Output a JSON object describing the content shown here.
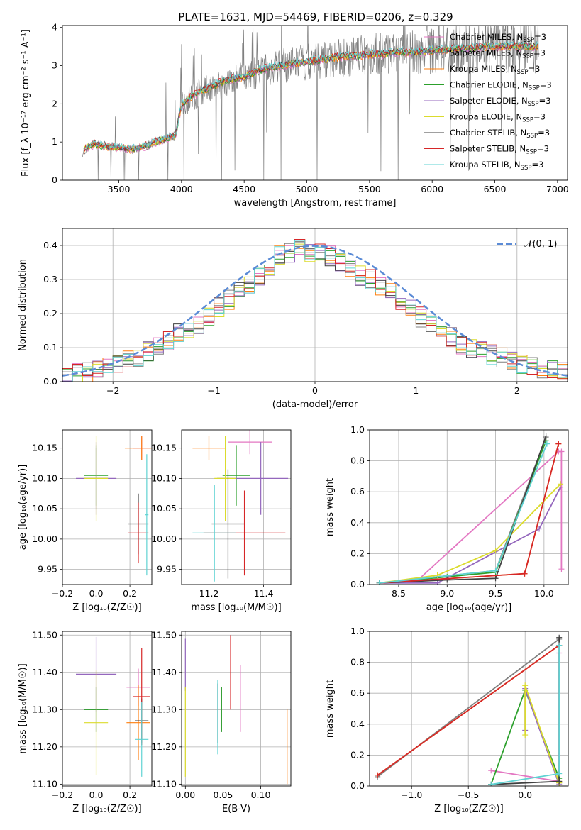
{
  "figure_title": "PLATE=1631, MJD=54469, FIBERID=0206, z=0.329",
  "series": [
    {
      "name": "Chabrier MILES, N",
      "sub": "SSP",
      "suffix": "=3",
      "color": "#e377c2"
    },
    {
      "name": "Salpeter MILES, N",
      "sub": "SSP",
      "suffix": "=3",
      "color": "#7f7f7f"
    },
    {
      "name": "Kroupa MILES, N",
      "sub": "SSP",
      "suffix": "=3",
      "color": "#ff7f0e"
    },
    {
      "name": "Chabrier ELODIE, N",
      "sub": "SSP",
      "suffix": "=3",
      "color": "#2ca02c"
    },
    {
      "name": "Salpeter ELODIE, N",
      "sub": "SSP",
      "suffix": "=3",
      "color": "#9467bd"
    },
    {
      "name": "Kroupa ELODIE, N",
      "sub": "SSP",
      "suffix": "=3",
      "color": "#dbdb2d"
    },
    {
      "name": "Chabrier STELIB, N",
      "sub": "SSP",
      "suffix": "=3",
      "color": "#404040"
    },
    {
      "name": "Salpeter STELIB, N",
      "sub": "SSP",
      "suffix": "=3",
      "color": "#d62728"
    },
    {
      "name": "Kroupa STELIB, N",
      "sub": "SSP",
      "suffix": "=3",
      "color": "#5fd3d3"
    }
  ],
  "chart_data": [
    {
      "id": "spectrum",
      "type": "line",
      "xlabel": "wavelength [Angstrom, rest frame]",
      "ylabel": "Flux [f_λ 10⁻¹⁷ erg cm⁻² s⁻¹ A⁻¹]",
      "xlim": [
        3050,
        7080
      ],
      "ylim": [
        0,
        4.05
      ],
      "xticks": [
        3500,
        4000,
        4500,
        5000,
        5500,
        6000,
        6500,
        7000
      ],
      "yticks": [
        0,
        1,
        2,
        3,
        4
      ],
      "grid": false,
      "legend": "top-right",
      "observed_color": "#808080",
      "observed": {
        "x": [
          3200,
          3250,
          3300,
          3400,
          3500,
          3600,
          3700,
          3800,
          3880,
          3950,
          4000,
          4100,
          4200,
          4300,
          4400,
          4500,
          4600,
          4700,
          4800,
          4900,
          5000,
          5100,
          5200,
          5300,
          5400,
          5500,
          5600,
          5700,
          5800,
          5900,
          6000,
          6100,
          6200,
          6300,
          6400,
          6500,
          6600,
          6700,
          6800,
          6850
        ],
        "y": [
          0.7,
          0.85,
          0.95,
          0.9,
          0.85,
          0.8,
          0.9,
          1.0,
          1.1,
          1.2,
          2.0,
          2.2,
          2.4,
          2.5,
          2.6,
          2.7,
          2.8,
          2.9,
          3.0,
          3.05,
          3.1,
          3.15,
          3.2,
          3.2,
          3.25,
          3.3,
          3.3,
          3.3,
          3.35,
          3.35,
          3.4,
          3.4,
          3.45,
          3.45,
          3.5,
          3.5,
          3.5,
          3.55,
          3.5,
          3.5
        ]
      },
      "model": {
        "x": [
          3200,
          3250,
          3300,
          3400,
          3500,
          3600,
          3700,
          3800,
          3880,
          3950,
          4000,
          4100,
          4200,
          4300,
          4400,
          4500,
          4600,
          4700,
          4800,
          4900,
          5000,
          5100,
          5200,
          5300,
          5400,
          5500,
          5600,
          5700,
          5800,
          5900,
          6000,
          6100,
          6200,
          6300,
          6400,
          6500,
          6600,
          6700,
          6800,
          6850
        ],
        "y": [
          0.75,
          0.85,
          0.95,
          0.88,
          0.85,
          0.8,
          0.88,
          1.0,
          1.1,
          1.15,
          1.95,
          2.25,
          2.4,
          2.55,
          2.65,
          2.7,
          2.85,
          2.95,
          3.0,
          3.05,
          3.1,
          3.15,
          3.2,
          3.25,
          3.25,
          3.3,
          3.3,
          3.35,
          3.35,
          3.35,
          3.4,
          3.4,
          3.45,
          3.45,
          3.5,
          3.5,
          3.5,
          3.5,
          3.5,
          3.5
        ]
      }
    },
    {
      "id": "residuals",
      "type": "line",
      "xlabel": "(data-model)/error",
      "ylabel": "Normed distribution",
      "xlim": [
        -2.5,
        2.5
      ],
      "ylim": [
        0,
        0.45
      ],
      "xticks": [
        -2,
        -1,
        0,
        1,
        2
      ],
      "yticks": [
        0.0,
        0.1,
        0.2,
        0.3,
        0.4
      ],
      "grid": true,
      "legend": "top-right",
      "gauss_label": "𝒩(0, 1)",
      "gauss_color": "#5b8bd6",
      "hist_x": [
        -2.5,
        -2.4,
        -2.3,
        -2.2,
        -2.1,
        -2.0,
        -1.9,
        -1.8,
        -1.7,
        -1.6,
        -1.5,
        -1.4,
        -1.3,
        -1.2,
        -1.1,
        -1.0,
        -0.9,
        -0.8,
        -0.7,
        -0.6,
        -0.5,
        -0.4,
        -0.3,
        -0.2,
        -0.1,
        0.0,
        0.1,
        0.2,
        0.3,
        0.4,
        0.5,
        0.6,
        0.7,
        0.8,
        0.9,
        1.0,
        1.1,
        1.2,
        1.3,
        1.4,
        1.5,
        1.6,
        1.7,
        1.8,
        1.9,
        2.0,
        2.1,
        2.2,
        2.3,
        2.4
      ],
      "hist_y": [
        0.02,
        0.025,
        0.03,
        0.035,
        0.045,
        0.05,
        0.06,
        0.07,
        0.09,
        0.1,
        0.12,
        0.14,
        0.15,
        0.17,
        0.19,
        0.22,
        0.24,
        0.27,
        0.29,
        0.31,
        0.34,
        0.37,
        0.38,
        0.39,
        0.38,
        0.38,
        0.37,
        0.35,
        0.33,
        0.31,
        0.3,
        0.28,
        0.26,
        0.24,
        0.21,
        0.19,
        0.17,
        0.15,
        0.13,
        0.11,
        0.1,
        0.09,
        0.08,
        0.07,
        0.06,
        0.05,
        0.045,
        0.04,
        0.035,
        0.03
      ]
    },
    {
      "id": "age_vs_Z",
      "type": "scatter",
      "xlabel": "Z [log₁₀(Z/Z☉)]",
      "ylabel": "age  [log₁₀(age/yr)]",
      "xlim": [
        -0.2,
        0.33
      ],
      "ylim": [
        9.925,
        10.18
      ],
      "xticks": [
        -0.2,
        0.0,
        0.2
      ],
      "xticklabels": [
        "−0.2",
        "0.0",
        "0.2"
      ],
      "yticks": [
        9.95,
        10.0,
        10.05,
        10.1,
        10.15
      ],
      "grid": true,
      "points": [
        {
          "s": 0,
          "x": 0.27,
          "y": 10.15,
          "xe": 0.05,
          "ye": 0.02
        },
        {
          "s": 1,
          "x": 0.0,
          "y": 10.1,
          "xe": 0.07,
          "ye": 0.05
        },
        {
          "s": 2,
          "x": 0.27,
          "y": 10.15,
          "xe": 0.1,
          "ye": 0.02
        },
        {
          "s": 3,
          "x": 0.0,
          "y": 10.105,
          "xe": 0.07,
          "ye": 0.05
        },
        {
          "s": 4,
          "x": 0.0,
          "y": 10.1,
          "xe": 0.12,
          "ye": 0.06
        },
        {
          "s": 5,
          "x": 0.0,
          "y": 10.1,
          "xe": 0.07,
          "ye": 0.07
        },
        {
          "s": 6,
          "x": 0.25,
          "y": 10.025,
          "xe": 0.06,
          "ye": 0.05
        },
        {
          "s": 7,
          "x": 0.25,
          "y": 10.01,
          "xe": 0.06,
          "ye": 0.05
        },
        {
          "s": 8,
          "x": 0.3,
          "y": 10.04,
          "xe": 0.01,
          "ye": 0.1
        }
      ]
    },
    {
      "id": "age_vs_mass",
      "type": "scatter",
      "xlabel": "mass [log₁₀(M/M☉)]",
      "ylabel": "",
      "xlim": [
        11.1,
        11.5
      ],
      "ylim": [
        9.925,
        10.18
      ],
      "xticks": [
        11.2,
        11.4
      ],
      "xticklabels": [
        "11.2",
        "11.4"
      ],
      "yticks": [
        9.95,
        10.0,
        10.05,
        10.1,
        10.15
      ],
      "grid": true,
      "points": [
        {
          "s": 0,
          "x": 11.35,
          "y": 10.16,
          "xe": 0.08,
          "ye": 0.02
        },
        {
          "s": 1,
          "x": 11.26,
          "y": 10.1,
          "xe": 0.03,
          "ye": 0.05
        },
        {
          "s": 2,
          "x": 11.2,
          "y": 10.15,
          "xe": 0.06,
          "ye": 0.02
        },
        {
          "s": 3,
          "x": 11.3,
          "y": 10.105,
          "xe": 0.05,
          "ye": 0.05
        },
        {
          "s": 4,
          "x": 11.39,
          "y": 10.1,
          "xe": 0.1,
          "ye": 0.06
        },
        {
          "s": 5,
          "x": 11.26,
          "y": 10.1,
          "xe": 0.04,
          "ye": 0.07
        },
        {
          "s": 6,
          "x": 11.27,
          "y": 10.025,
          "xe": 0.06,
          "ye": 0.09
        },
        {
          "s": 7,
          "x": 11.33,
          "y": 10.01,
          "xe": 0.15,
          "ye": 0.07
        },
        {
          "s": 8,
          "x": 11.22,
          "y": 10.01,
          "xe": 0.08,
          "ye": 0.08
        }
      ]
    },
    {
      "id": "massweight_vs_age",
      "type": "line",
      "xlabel": "age  [log₁₀(age/yr)]",
      "ylabel": "mass weight",
      "xlim": [
        8.2,
        10.25
      ],
      "ylim": [
        0,
        1.0
      ],
      "xticks": [
        8.5,
        9.0,
        9.5,
        10.0
      ],
      "xticklabels": [
        "8.5",
        "9.0",
        "9.5",
        "10.0"
      ],
      "yticks": [
        0.0,
        0.2,
        0.4,
        0.6,
        0.8,
        1.0
      ],
      "grid": true,
      "lines": [
        {
          "s": 0,
          "x": [
            8.7,
            10.15,
            10.18,
            10.18
          ],
          "y": [
            0.03,
            0.86,
            0.86,
            0.1
          ]
        },
        {
          "s": 1,
          "x": [
            8.3,
            9.5,
            10.02
          ],
          "y": [
            0.01,
            0.09,
            0.95
          ]
        },
        {
          "s": 2,
          "x": [
            8.3,
            9.8,
            10.15
          ],
          "y": [
            0.01,
            0.07,
            0.91
          ]
        },
        {
          "s": 3,
          "x": [
            8.3,
            9.0,
            9.5,
            10.02
          ],
          "y": [
            0.01,
            0.05,
            0.08,
            0.93
          ]
        },
        {
          "s": 4,
          "x": [
            8.3,
            8.9,
            9.95,
            10.17
          ],
          "y": [
            0.01,
            0.01,
            0.36,
            0.63
          ]
        },
        {
          "s": 5,
          "x": [
            8.3,
            8.9,
            9.5,
            10.17
          ],
          "y": [
            0.01,
            0.06,
            0.22,
            0.65
          ]
        },
        {
          "s": 6,
          "x": [
            8.3,
            9.0,
            9.5,
            10.02
          ],
          "y": [
            0.01,
            0.03,
            0.04,
            0.96
          ]
        },
        {
          "s": 7,
          "x": [
            8.3,
            9.8,
            10.15
          ],
          "y": [
            0.01,
            0.07,
            0.91
          ]
        },
        {
          "s": 8,
          "x": [
            8.3,
            9.5,
            10.03
          ],
          "y": [
            0.01,
            0.09,
            0.91
          ]
        }
      ]
    },
    {
      "id": "mass_vs_Z",
      "type": "scatter",
      "xlabel": "Z [log₁₀(Z/Z☉)]",
      "ylabel": "mass [log₁₀(M/M☉)]",
      "xlim": [
        -0.2,
        0.33
      ],
      "ylim": [
        11.095,
        11.51
      ],
      "xticks": [
        -0.2,
        0.0,
        0.2
      ],
      "xticklabels": [
        "−0.2",
        "0.0",
        "0.2"
      ],
      "yticks": [
        11.1,
        11.2,
        11.3,
        11.4,
        11.5
      ],
      "grid": true,
      "points": [
        {
          "s": 0,
          "x": 0.25,
          "y": 11.36,
          "xe": 0.07,
          "ye": 0.05
        },
        {
          "s": 1,
          "x": 0.0,
          "y": 11.3,
          "xe": 0.07,
          "ye": 0.06
        },
        {
          "s": 2,
          "x": 0.25,
          "y": 11.265,
          "xe": 0.07,
          "ye": 0.1
        },
        {
          "s": 3,
          "x": 0.0,
          "y": 11.3,
          "xe": 0.07,
          "ye": 0.06
        },
        {
          "s": 4,
          "x": 0.0,
          "y": 11.395,
          "xe": 0.12,
          "ye": 0.1
        },
        {
          "s": 5,
          "x": 0.0,
          "y": 11.265,
          "xe": 0.07,
          "ye": 0.14
        },
        {
          "s": 6,
          "x": 0.27,
          "y": 11.27,
          "xe": 0.04,
          "ye": 0.06
        },
        {
          "s": 7,
          "x": 0.27,
          "y": 11.335,
          "xe": 0.05,
          "ye": 0.13
        },
        {
          "s": 8,
          "x": 0.27,
          "y": 11.22,
          "xe": 0.04,
          "ye": 0.1
        }
      ]
    },
    {
      "id": "mass_vs_EBV",
      "type": "scatter",
      "xlabel": "E(B-V)",
      "ylabel": "",
      "xlim": [
        -0.005,
        0.14
      ],
      "ylim": [
        11.095,
        11.51
      ],
      "xticks": [
        0.0,
        0.05,
        0.1
      ],
      "xticklabels": [
        "0.00",
        "0.05",
        "0.10"
      ],
      "yticks": [
        11.1,
        11.2,
        11.3,
        11.4,
        11.5
      ],
      "grid": true,
      "points": [
        {
          "s": 0,
          "x": 0.073,
          "y": 11.33,
          "xe": 0,
          "ye": 0.09
        },
        {
          "s": 1,
          "x": 0.048,
          "y": 11.3,
          "xe": 0,
          "ye": 0.06
        },
        {
          "s": 2,
          "x": 0.135,
          "y": 11.2,
          "xe": 0,
          "ye": 0.1
        },
        {
          "s": 3,
          "x": 0.048,
          "y": 11.3,
          "xe": 0,
          "ye": 0.06
        },
        {
          "s": 4,
          "x": 0.0,
          "y": 11.42,
          "xe": 0,
          "ye": 0.07
        },
        {
          "s": 5,
          "x": 0.0,
          "y": 11.24,
          "xe": 0,
          "ye": 0.12
        },
        {
          "s": 6,
          "x": 0.043,
          "y": 11.29,
          "xe": 0,
          "ye": 0.08
        },
        {
          "s": 7,
          "x": 0.06,
          "y": 11.4,
          "xe": 0,
          "ye": 0.1
        },
        {
          "s": 8,
          "x": 0.043,
          "y": 11.28,
          "xe": 0,
          "ye": 0.1
        }
      ]
    },
    {
      "id": "massweight_vs_Z",
      "type": "line",
      "xlabel": "Z [log₁₀(Z/Z☉)]",
      "ylabel": "mass weight",
      "xlim": [
        -1.37,
        0.38
      ],
      "ylim": [
        0,
        1.0
      ],
      "xticks": [
        -1.0,
        -0.5,
        0.0
      ],
      "xticklabels": [
        "−1.0",
        "−0.5",
        "0.0"
      ],
      "yticks": [
        0.0,
        0.2,
        0.4,
        0.6,
        0.8,
        1.0
      ],
      "grid": true,
      "lines": [
        {
          "s": 0,
          "x": [
            -0.3,
            0.3,
            0.3
          ],
          "y": [
            0.1,
            0.03,
            0.86
          ]
        },
        {
          "s": 1,
          "x": [
            -1.3,
            0.3
          ],
          "y": [
            0.06,
            0.95
          ]
        },
        {
          "s": 2,
          "x": [
            -1.3,
            0.3
          ],
          "y": [
            0.07,
            0.91
          ]
        },
        {
          "s": 3,
          "x": [
            -0.3,
            0.0,
            0.3
          ],
          "y": [
            0.01,
            0.62,
            0.05
          ]
        },
        {
          "s": 4,
          "x": [
            0.0,
            0.0,
            0.3,
            0.3
          ],
          "y": [
            0.36,
            0.63,
            0.01,
            0.02
          ]
        },
        {
          "s": 5,
          "x": [
            0.0,
            0.0,
            0.3,
            0.3
          ],
          "y": [
            0.33,
            0.65,
            0.02,
            0.03
          ]
        },
        {
          "s": 6,
          "x": [
            -0.3,
            0.3,
            0.3
          ],
          "y": [
            0.01,
            0.03,
            0.96
          ]
        },
        {
          "s": 7,
          "x": [
            -1.3,
            0.3
          ],
          "y": [
            0.07,
            0.91
          ]
        },
        {
          "s": 8,
          "x": [
            -0.3,
            0.3,
            0.3
          ],
          "y": [
            0.01,
            0.08,
            0.91
          ]
        }
      ]
    }
  ]
}
